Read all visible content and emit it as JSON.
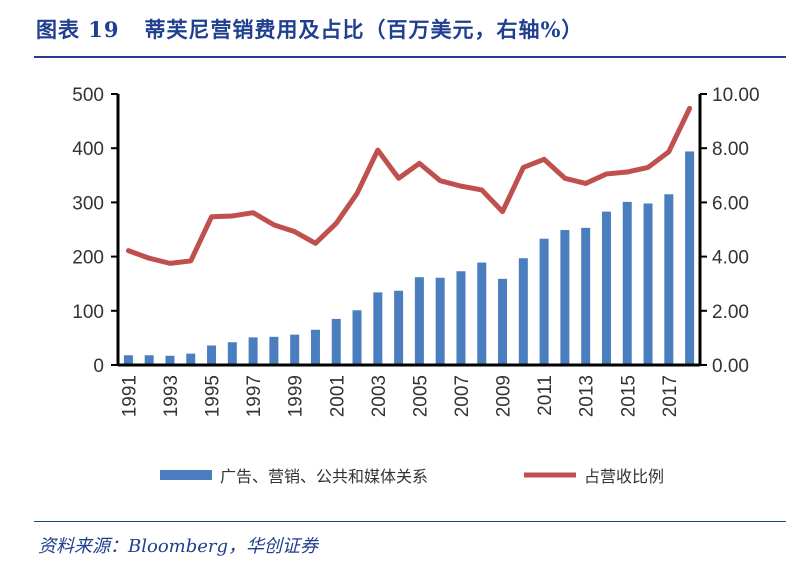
{
  "title": "图表 19   蒂芙尼营销费用及占比（百万美元，右轴%）",
  "source": "资料来源：Bloomberg，华创证券",
  "chart_data": {
    "type": "bar+line",
    "categories": [
      1991,
      1992,
      1993,
      1994,
      1995,
      1996,
      1997,
      1998,
      1999,
      2000,
      2001,
      2002,
      2003,
      2004,
      2005,
      2006,
      2007,
      2008,
      2009,
      2010,
      2011,
      2012,
      2013,
      2014,
      2015,
      2016,
      2017,
      2018
    ],
    "x_tick_labels": [
      "1991",
      "1993",
      "1995",
      "1997",
      "1999",
      "2001",
      "2003",
      "2005",
      "2007",
      "2009",
      "2011",
      "2013",
      "2015",
      "2017"
    ],
    "series": [
      {
        "name": "广告、营销、公共和媒体关系",
        "type": "bar",
        "axis": "left",
        "color": "#4a7ebf",
        "values": [
          18,
          18,
          17,
          21,
          36,
          42,
          51,
          52,
          56,
          65,
          85,
          101,
          134,
          137,
          162,
          161,
          173,
          189,
          159,
          197,
          233,
          249,
          253,
          283,
          301,
          298,
          315,
          394
        ]
      },
      {
        "name": "占营收比例",
        "type": "line",
        "axis": "right",
        "color": "#c0504d",
        "values": [
          4.22,
          3.94,
          3.75,
          3.84,
          5.47,
          5.5,
          5.62,
          5.17,
          4.92,
          4.49,
          5.23,
          6.33,
          7.93,
          6.89,
          7.44,
          6.8,
          6.6,
          6.46,
          5.66,
          7.29,
          7.59,
          6.89,
          6.7,
          7.05,
          7.12,
          7.29,
          7.87,
          9.47
        ]
      }
    ],
    "y_left": {
      "range": [
        0,
        500
      ],
      "ticks": [
        "0",
        "100",
        "200",
        "300",
        "400",
        "500"
      ]
    },
    "y_right": {
      "range": [
        0,
        10
      ],
      "ticks": [
        "0.00",
        "2.00",
        "4.00",
        "6.00",
        "8.00",
        "10.00"
      ]
    },
    "legend_position": "bottom",
    "grid": false
  }
}
